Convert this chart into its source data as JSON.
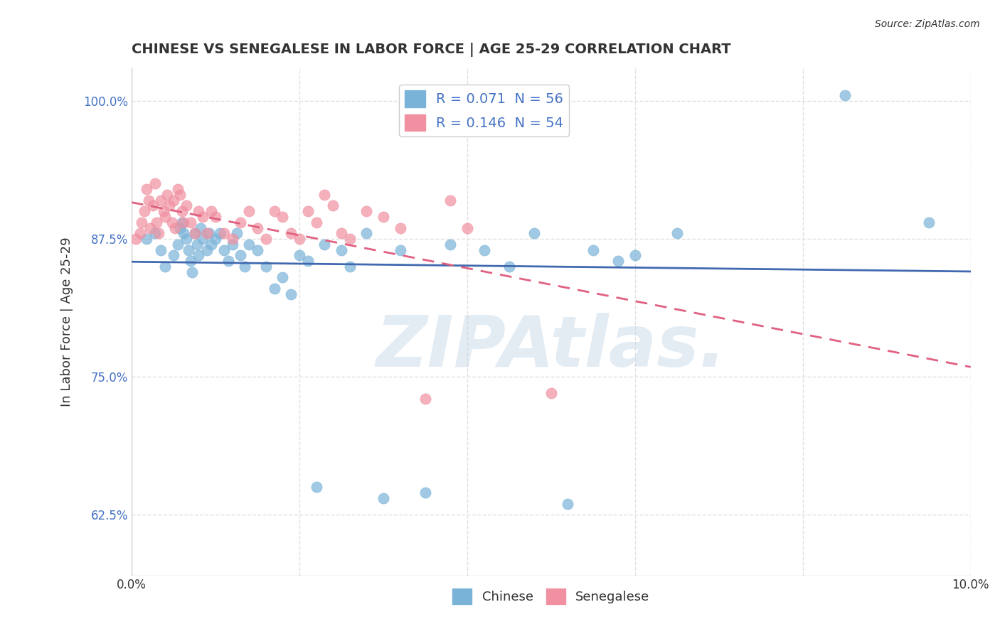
{
  "title": "CHINESE VS SENEGALESE IN LABOR FORCE | AGE 25-29 CORRELATION CHART",
  "source": "Source: ZipAtlas.com",
  "xlabel_bottom": "",
  "ylabel": "In Labor Force | Age 25-29",
  "xlim": [
    0.0,
    10.0
  ],
  "ylim": [
    57.0,
    103.0
  ],
  "yticks": [
    62.5,
    75.0,
    87.5,
    100.0
  ],
  "ytick_labels": [
    "62.5%",
    "75.0%",
    "87.5%",
    "100.0%"
  ],
  "xticks": [
    0.0,
    2.0,
    4.0,
    6.0,
    8.0,
    10.0
  ],
  "xtick_labels": [
    "0.0%",
    "",
    "",
    "",
    "",
    "10.0%"
  ],
  "legend_entries": [
    {
      "label": "R = 0.071  N = 56",
      "color": "#a8c4e0"
    },
    {
      "label": "R = 0.146  N = 54",
      "color": "#f4a0b0"
    }
  ],
  "chinese_color": "#7ab3d8",
  "senegalese_color": "#f090a0",
  "trend_chinese_color": "#4169b0",
  "trend_senegalese_color": "#e06080",
  "watermark": "ZIPAtlas.",
  "watermark_color": "#c8d8e8",
  "grid_color": "#e0e0e0",
  "chinese_x": [
    0.18,
    0.28,
    0.35,
    0.4,
    0.5,
    0.55,
    0.58,
    0.6,
    0.62,
    0.65,
    0.68,
    0.7,
    0.72,
    0.75,
    0.78,
    0.8,
    0.82,
    0.85,
    0.9,
    0.92,
    0.95,
    1.0,
    1.05,
    1.1,
    1.15,
    1.2,
    1.25,
    1.3,
    1.35,
    1.4,
    1.5,
    1.6,
    1.7,
    1.8,
    1.9,
    2.0,
    2.1,
    2.2,
    2.3,
    2.5,
    2.6,
    2.8,
    3.0,
    3.2,
    3.5,
    3.8,
    4.2,
    4.5,
    4.8,
    5.2,
    5.5,
    5.8,
    6.0,
    6.5,
    8.5,
    9.5
  ],
  "chinese_y": [
    87.5,
    88.0,
    86.5,
    85.0,
    86.0,
    87.0,
    88.5,
    89.0,
    88.0,
    87.5,
    86.5,
    85.5,
    84.5,
    88.0,
    87.0,
    86.0,
    88.5,
    87.5,
    86.5,
    88.0,
    87.0,
    87.5,
    88.0,
    86.5,
    85.5,
    87.0,
    88.0,
    86.0,
    85.0,
    87.0,
    86.5,
    85.0,
    83.0,
    84.0,
    82.5,
    86.0,
    85.5,
    65.0,
    87.0,
    86.5,
    85.0,
    88.0,
    64.0,
    86.5,
    64.5,
    87.0,
    86.5,
    85.0,
    88.0,
    63.5,
    86.5,
    85.5,
    86.0,
    88.0,
    100.5,
    89.0
  ],
  "senegalese_x": [
    0.05,
    0.1,
    0.12,
    0.15,
    0.18,
    0.2,
    0.22,
    0.25,
    0.28,
    0.3,
    0.32,
    0.35,
    0.38,
    0.4,
    0.42,
    0.45,
    0.48,
    0.5,
    0.52,
    0.55,
    0.58,
    0.6,
    0.62,
    0.65,
    0.7,
    0.75,
    0.8,
    0.85,
    0.9,
    0.95,
    1.0,
    1.1,
    1.2,
    1.3,
    1.4,
    1.5,
    1.6,
    1.7,
    1.8,
    1.9,
    2.0,
    2.1,
    2.2,
    2.3,
    2.4,
    2.5,
    2.6,
    2.8,
    3.0,
    3.2,
    3.5,
    3.8,
    4.0,
    5.0
  ],
  "senegalese_y": [
    87.5,
    88.0,
    89.0,
    90.0,
    92.0,
    91.0,
    88.5,
    90.5,
    92.5,
    89.0,
    88.0,
    91.0,
    90.0,
    89.5,
    91.5,
    90.5,
    89.0,
    91.0,
    88.5,
    92.0,
    91.5,
    90.0,
    89.0,
    90.5,
    89.0,
    88.0,
    90.0,
    89.5,
    88.0,
    90.0,
    89.5,
    88.0,
    87.5,
    89.0,
    90.0,
    88.5,
    87.5,
    90.0,
    89.5,
    88.0,
    87.5,
    90.0,
    89.0,
    91.5,
    90.5,
    88.0,
    87.5,
    90.0,
    89.5,
    88.5,
    73.0,
    91.0,
    88.5,
    73.5
  ]
}
